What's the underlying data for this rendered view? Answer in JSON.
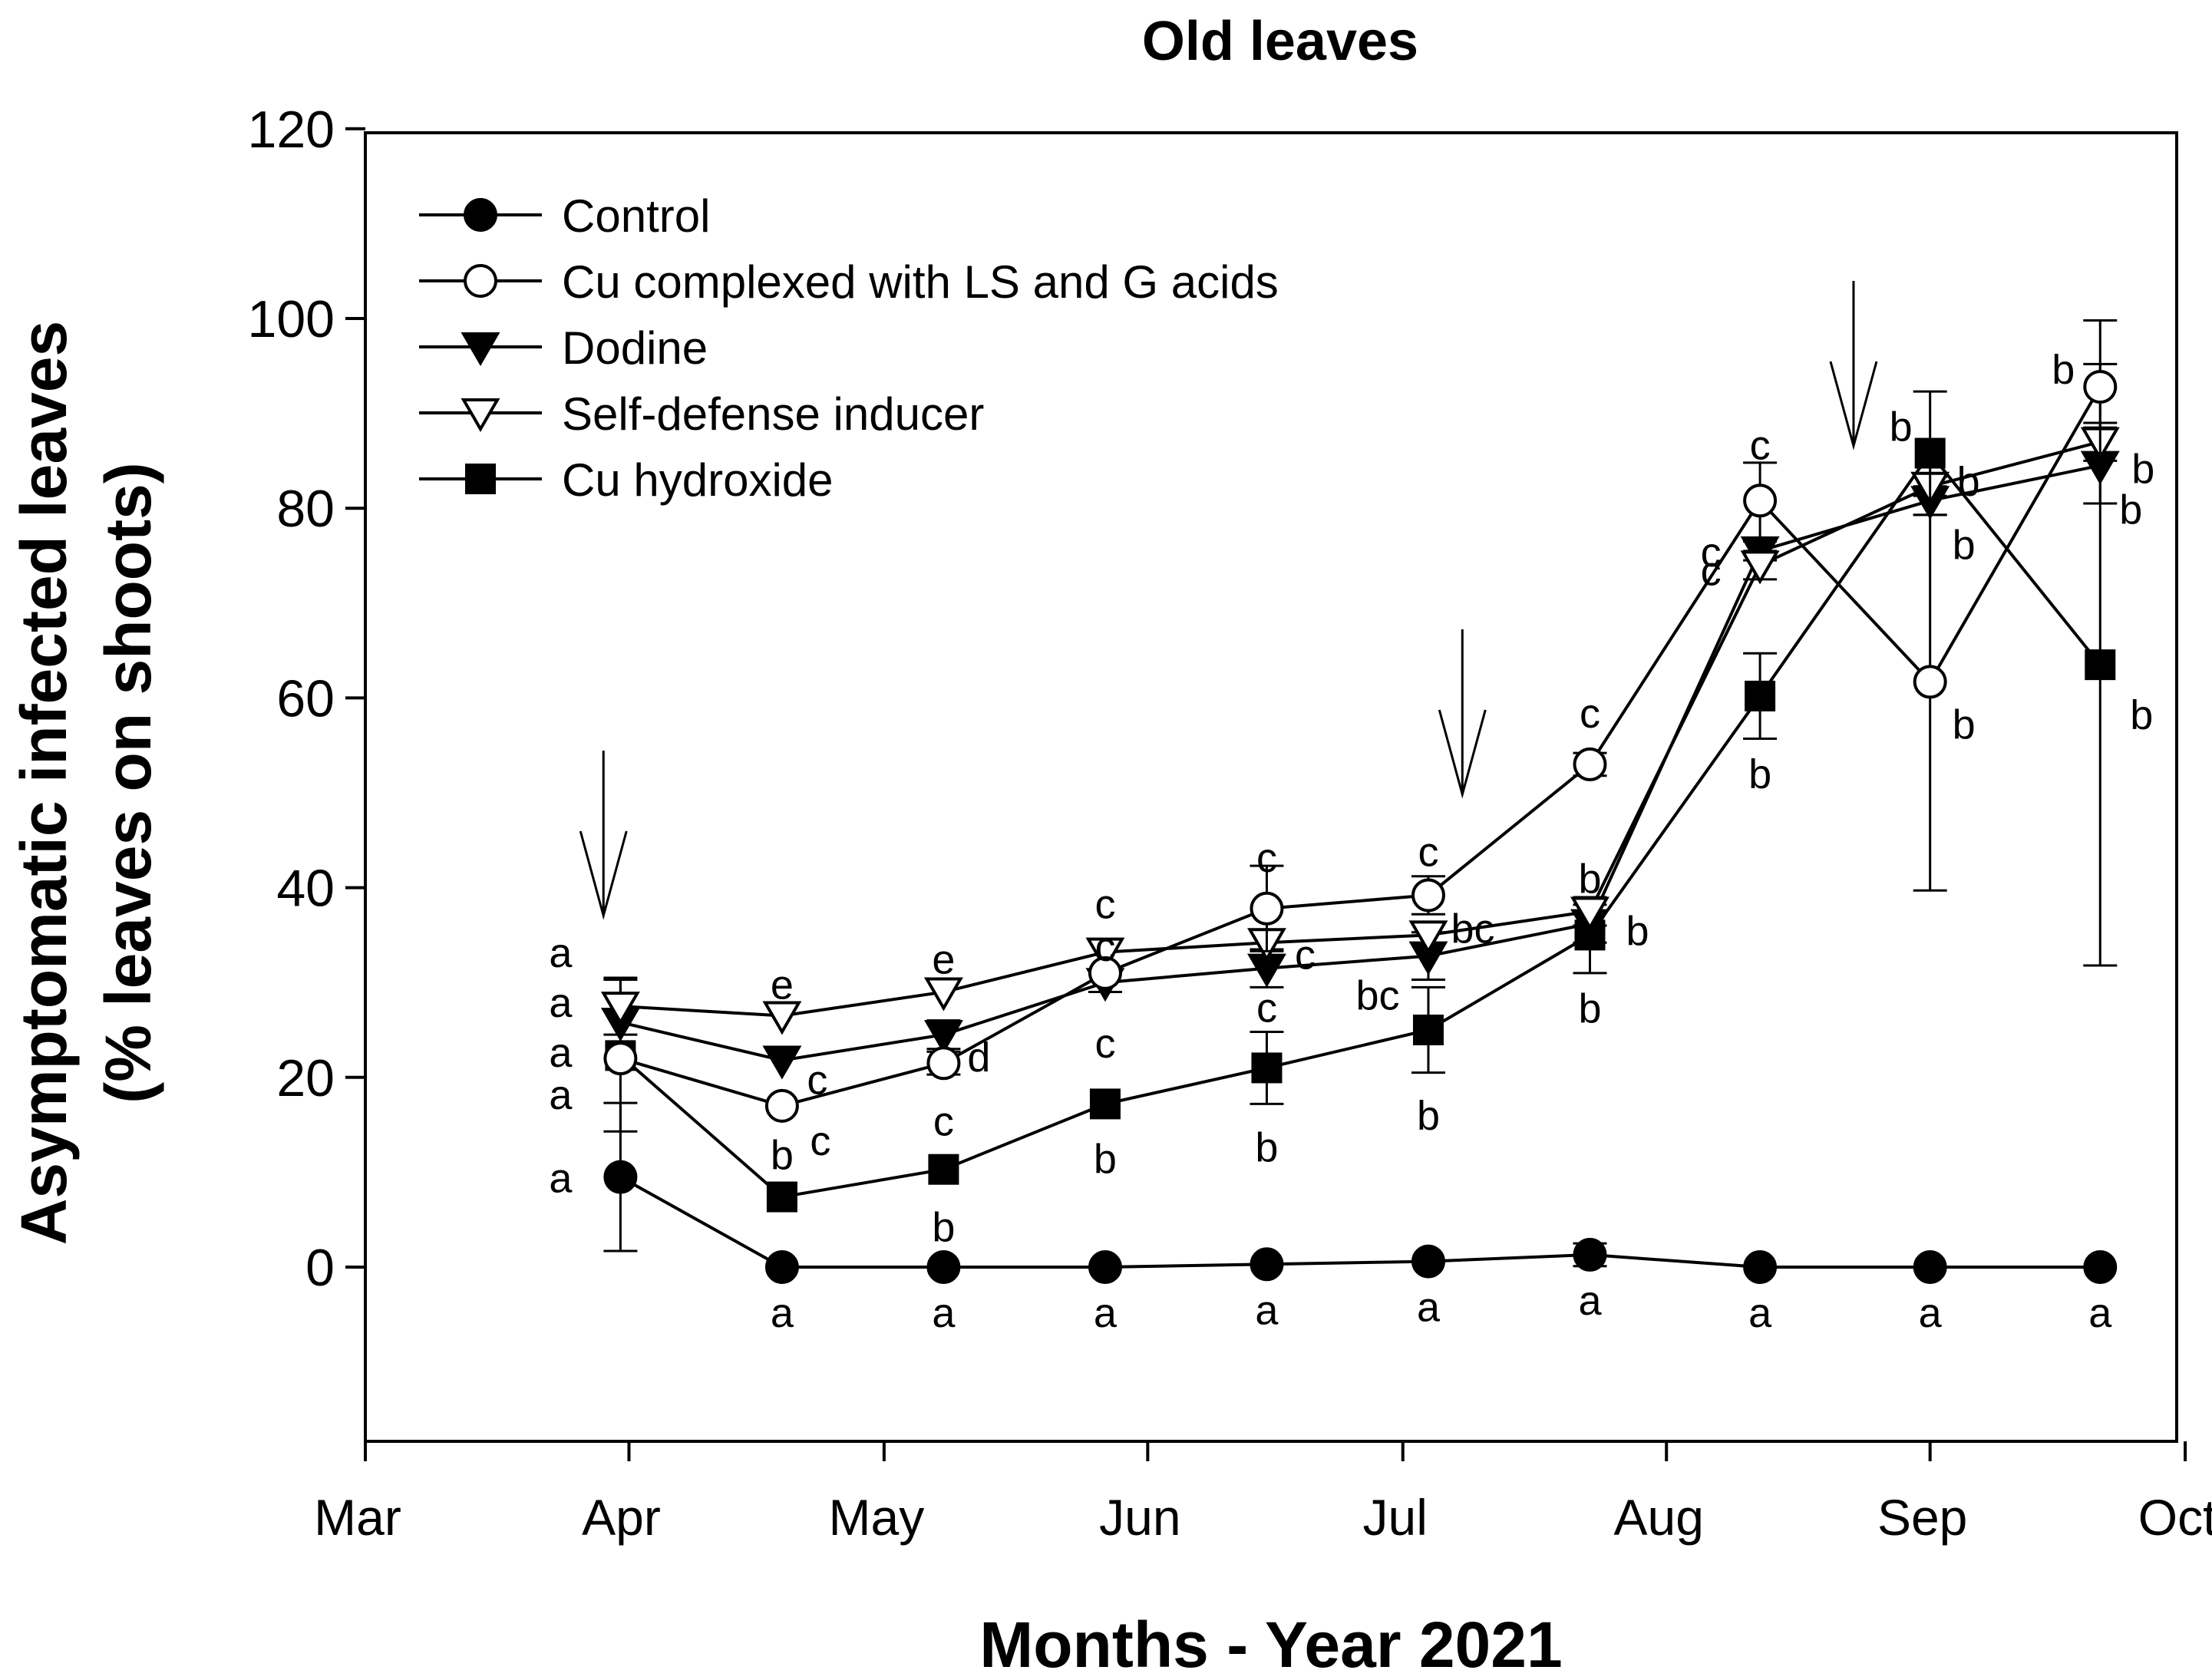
{
  "chart_data": {
    "type": "line",
    "title": "Old leaves",
    "xlabel": "Months - Year 2021",
    "ylabel_line1": "Asymptomatic infected leaves",
    "ylabel_line2": "(% leaves on shoots)",
    "ylim": [
      -18,
      120
    ],
    "yticks": [
      0,
      20,
      40,
      60,
      80,
      100,
      120
    ],
    "xlim_days": [
      60,
      273
    ],
    "month_ticks": [
      {
        "label": "Mar",
        "day": 60
      },
      {
        "label": "Apr",
        "day": 91
      },
      {
        "label": "May",
        "day": 121
      },
      {
        "label": "Jun",
        "day": 152
      },
      {
        "label": "Jul",
        "day": 182
      },
      {
        "label": "Aug",
        "day": 213
      },
      {
        "label": "Sep",
        "day": 244
      },
      {
        "label": "Oct",
        "day": 274
      }
    ],
    "x_days": [
      90,
      109,
      128,
      147,
      166,
      185,
      204,
      224,
      244,
      264
    ],
    "treatment_arrows_days": [
      88,
      189,
      235
    ],
    "series": [
      {
        "name": "Control",
        "marker": "circle-filled",
        "values": [
          9.5,
          0,
          0,
          0,
          0.3,
          0.6,
          1.3,
          0,
          0,
          0
        ],
        "errors": [
          7.8,
          0,
          0,
          0,
          0,
          0,
          1.2,
          0,
          0,
          0
        ],
        "letters": [
          "a",
          "a",
          "a",
          "a",
          "a",
          "a",
          "a",
          "a",
          "a",
          "a"
        ]
      },
      {
        "name": "Cu complexed with LS and G acids",
        "marker": "circle-open",
        "values": [
          22,
          17,
          21.5,
          31,
          37.8,
          39.2,
          53,
          80.8,
          61.7,
          92.8
        ],
        "errors": [
          0,
          0,
          1.2,
          0,
          4.5,
          2,
          1.2,
          4,
          22,
          7
        ],
        "letters": [
          "a",
          "c",
          "c",
          "c",
          "c",
          "c",
          "c",
          "c",
          "b",
          "b"
        ]
      },
      {
        "name": "Dodine",
        "marker": "triangle-down-filled",
        "values": [
          25.8,
          21.8,
          24.5,
          30,
          31.5,
          32.8,
          36.2,
          75.5,
          80.8,
          84.5
        ],
        "errors": [
          0,
          0,
          1.5,
          1,
          2,
          2.5,
          2,
          1,
          1.5,
          4
        ],
        "letters": [
          "a",
          "c",
          "d",
          "c",
          "c",
          "bc",
          "b",
          "c",
          "b",
          "b"
        ]
      },
      {
        "name": "Self-defense inducer",
        "marker": "triangle-down-open",
        "values": [
          27.5,
          26.5,
          29,
          33.2,
          34.2,
          35,
          37.5,
          74,
          82.3,
          87
        ],
        "errors": [
          3,
          0,
          0,
          0,
          0,
          0,
          1.5,
          1.5,
          1,
          2
        ],
        "letters": [
          "a",
          "e",
          "e",
          "c",
          "c",
          "bc",
          "b",
          "c",
          "b",
          "b"
        ]
      },
      {
        "name": "Cu hydroxide",
        "marker": "square-filled",
        "values": [
          22.3,
          7.4,
          10.3,
          17.2,
          21,
          25,
          35,
          60.2,
          85.8,
          63.5
        ],
        "errors": [
          8,
          0,
          0,
          0,
          3.8,
          4.5,
          4,
          4.5,
          6.5,
          31.7
        ],
        "letters": [
          "a",
          "b",
          "b",
          "b",
          "b",
          "b",
          "b",
          "b",
          "b",
          "b"
        ]
      }
    ]
  }
}
